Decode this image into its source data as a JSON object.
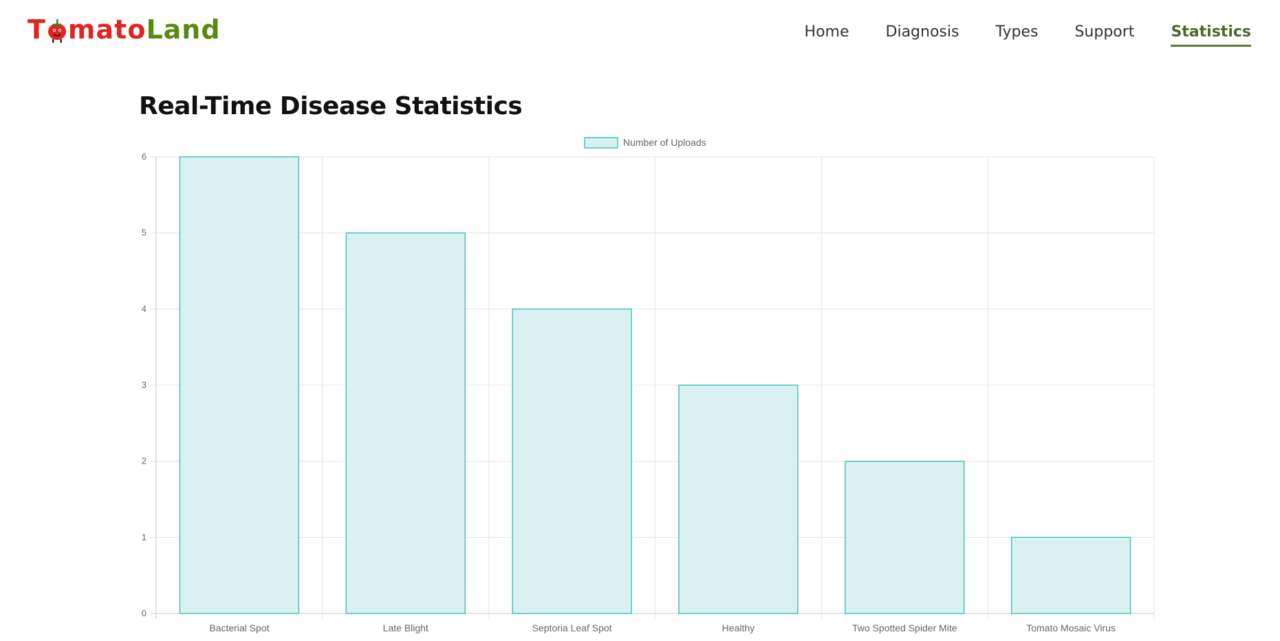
{
  "header": {
    "logo": {
      "part_a_before": "T",
      "part_a_after": "mato",
      "part_b": "Land"
    },
    "nav": [
      {
        "label": "Home",
        "active": false
      },
      {
        "label": "Diagnosis",
        "active": false
      },
      {
        "label": "Types",
        "active": false
      },
      {
        "label": "Support",
        "active": false
      },
      {
        "label": "Statistics",
        "active": true
      }
    ]
  },
  "main": {
    "title": "Real-Time Disease Statistics"
  },
  "colors": {
    "bar_fill": "#d9f1f1",
    "bar_stroke": "#4bc0c0",
    "grid": "#e5e5e5",
    "nav_active": "#4a6a2a",
    "logo_red": "#e02420",
    "logo_green": "#5a8a12"
  },
  "chart_data": {
    "type": "bar",
    "title": "",
    "xlabel": "",
    "ylabel": "",
    "categories": [
      "Bacterial Spot",
      "Late Blight",
      "Septoria Leaf Spot",
      "Healthy",
      "Two Spotted Spider Mite",
      "Tomato Mosaic Virus"
    ],
    "series": [
      {
        "name": "Number of Uploads",
        "values": [
          6,
          5,
          4,
          3,
          2,
          1
        ]
      }
    ],
    "ylim": [
      0,
      6
    ],
    "yticks": [
      0,
      1,
      2,
      3,
      4,
      5,
      6
    ],
    "grid": true,
    "legend": "top-center"
  }
}
